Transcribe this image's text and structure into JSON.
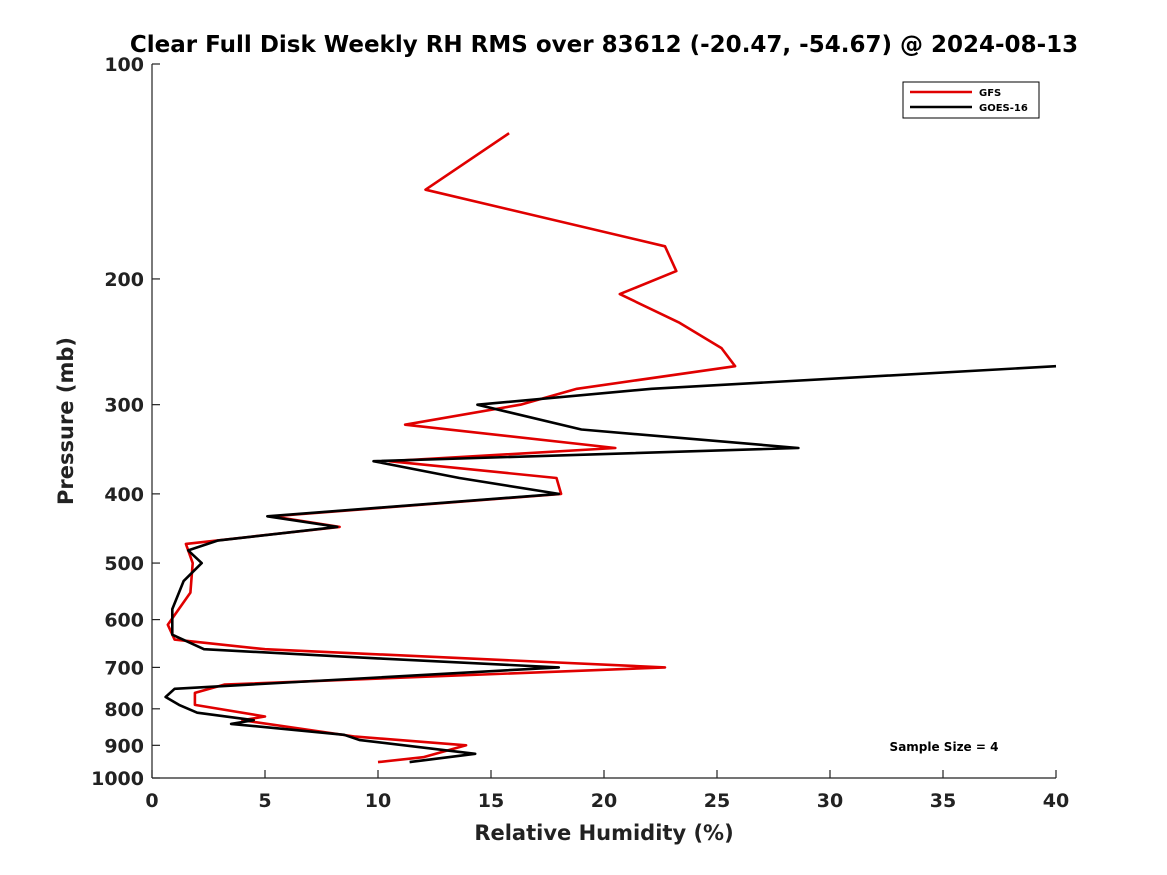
{
  "chart_data": {
    "type": "line",
    "title": "Clear Full Disk Weekly RH RMS over 83612 (-20.47, -54.67) @ 2024-08-13",
    "xlabel": "Relative Humidity (%)",
    "ylabel": "Pressure (mb)",
    "xlim": [
      0,
      40
    ],
    "ylim": [
      100,
      1000
    ],
    "yscale": "log",
    "y_reversed": true,
    "xticks": [
      0,
      5,
      10,
      15,
      20,
      25,
      30,
      35,
      40
    ],
    "yticks": [
      100,
      200,
      300,
      400,
      500,
      600,
      700,
      800,
      900,
      1000
    ],
    "grid": false,
    "legend_position": "top-right",
    "annotation": "Sample Size = 4",
    "series": [
      {
        "name": "GFS",
        "color": "#e00000",
        "points": [
          [
            15.8,
            125
          ],
          [
            12.1,
            150
          ],
          [
            22.7,
            180
          ],
          [
            23.2,
            195
          ],
          [
            20.7,
            210
          ],
          [
            23.3,
            230
          ],
          [
            25.2,
            250
          ],
          [
            25.8,
            265
          ],
          [
            18.8,
            285
          ],
          [
            16.3,
            300
          ],
          [
            11.2,
            320
          ],
          [
            20.5,
            345
          ],
          [
            10.5,
            360
          ],
          [
            17.9,
            380
          ],
          [
            18.1,
            400
          ],
          [
            5.3,
            430
          ],
          [
            8.3,
            445
          ],
          [
            1.5,
            470
          ],
          [
            1.8,
            500
          ],
          [
            1.7,
            550
          ],
          [
            0.7,
            610
          ],
          [
            1.0,
            640
          ],
          [
            5.0,
            660
          ],
          [
            22.7,
            700
          ],
          [
            3.2,
            740
          ],
          [
            1.9,
            760
          ],
          [
            1.9,
            790
          ],
          [
            5.0,
            820
          ],
          [
            4.0,
            830
          ],
          [
            9.0,
            875
          ],
          [
            13.9,
            900
          ],
          [
            12.0,
            935
          ],
          [
            10.0,
            950
          ]
        ]
      },
      {
        "name": "GOES-16",
        "color": "#000000",
        "points": [
          [
            40.0,
            265
          ],
          [
            22.1,
            285
          ],
          [
            14.4,
            300
          ],
          [
            19.0,
            325
          ],
          [
            28.6,
            345
          ],
          [
            9.8,
            360
          ],
          [
            13.6,
            380
          ],
          [
            18.0,
            400
          ],
          [
            5.1,
            430
          ],
          [
            8.2,
            445
          ],
          [
            2.9,
            465
          ],
          [
            1.6,
            480
          ],
          [
            2.2,
            500
          ],
          [
            1.4,
            530
          ],
          [
            0.9,
            580
          ],
          [
            0.9,
            630
          ],
          [
            2.3,
            660
          ],
          [
            10.0,
            680
          ],
          [
            18.0,
            700
          ],
          [
            1.0,
            750
          ],
          [
            0.6,
            770
          ],
          [
            1.2,
            790
          ],
          [
            2.0,
            810
          ],
          [
            4.5,
            830
          ],
          [
            3.5,
            840
          ],
          [
            8.5,
            870
          ],
          [
            9.2,
            885
          ],
          [
            14.3,
            925
          ],
          [
            11.4,
            950
          ]
        ]
      }
    ]
  }
}
